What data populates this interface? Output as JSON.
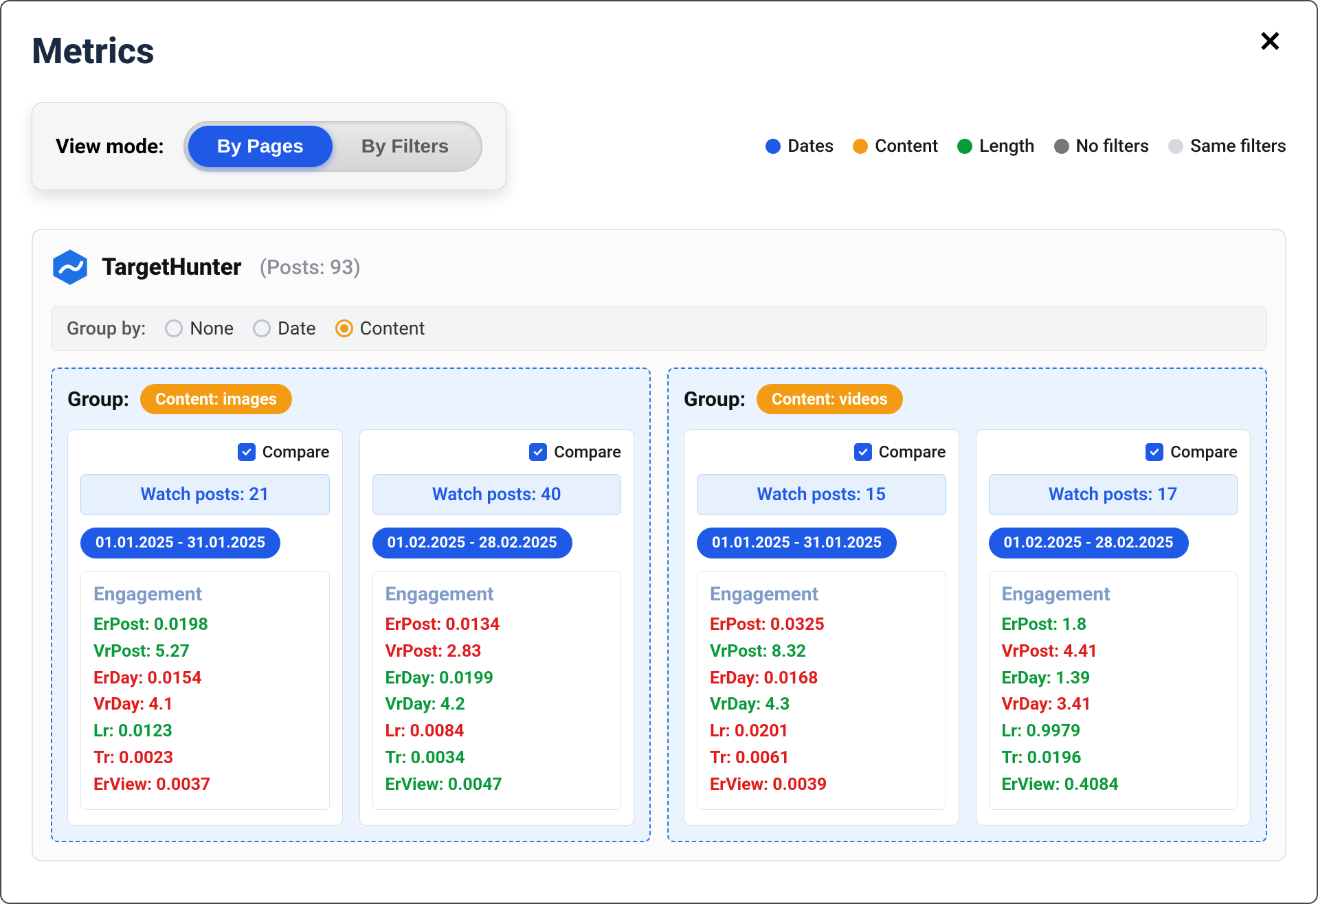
{
  "title": "Metrics",
  "view_mode": {
    "label": "View mode:",
    "options": [
      "By Pages",
      "By Filters"
    ],
    "active_index": 0
  },
  "legend": [
    {
      "label": "Dates",
      "color": "#1e5ae6"
    },
    {
      "label": "Content",
      "color": "#f39b12"
    },
    {
      "label": "Length",
      "color": "#0a9a3a"
    },
    {
      "label": "No filters",
      "color": "#777777"
    },
    {
      "label": "Same filters",
      "color": "#d6dadf"
    }
  ],
  "page": {
    "name": "TargetHunter",
    "posts_label": "(Posts: 93)",
    "logo_color": "#1e72e6"
  },
  "group_by": {
    "label": "Group by:",
    "options": [
      "None",
      "Date",
      "Content"
    ],
    "selected_index": 2
  },
  "group_label": "Group:",
  "compare_label": "Compare",
  "watch_label_prefix": "Watch posts: ",
  "engagement_title": "Engagement",
  "metric_color_pos": "#0a9a3a",
  "metric_color_neg": "#e11b1b",
  "groups": [
    {
      "pill": "Content: images",
      "cards": [
        {
          "watch_count": 21,
          "date_range": "01.01.2025 - 31.01.2025",
          "metrics": [
            {
              "text": "ErPost: 0.0198",
              "pos": true
            },
            {
              "text": "VrPost: 5.27",
              "pos": true
            },
            {
              "text": "ErDay: 0.0154",
              "pos": false
            },
            {
              "text": "VrDay: 4.1",
              "pos": false
            },
            {
              "text": "Lr: 0.0123",
              "pos": true
            },
            {
              "text": "Tr: 0.0023",
              "pos": false
            },
            {
              "text": "ErView: 0.0037",
              "pos": false
            }
          ]
        },
        {
          "watch_count": 40,
          "date_range": "01.02.2025 - 28.02.2025",
          "metrics": [
            {
              "text": "ErPost: 0.0134",
              "pos": false
            },
            {
              "text": "VrPost: 2.83",
              "pos": false
            },
            {
              "text": "ErDay: 0.0199",
              "pos": true
            },
            {
              "text": "VrDay: 4.2",
              "pos": true
            },
            {
              "text": "Lr: 0.0084",
              "pos": false
            },
            {
              "text": "Tr: 0.0034",
              "pos": true
            },
            {
              "text": "ErView: 0.0047",
              "pos": true
            }
          ]
        }
      ]
    },
    {
      "pill": "Content: videos",
      "cards": [
        {
          "watch_count": 15,
          "date_range": "01.01.2025 - 31.01.2025",
          "metrics": [
            {
              "text": "ErPost: 0.0325",
              "pos": false
            },
            {
              "text": "VrPost: 8.32",
              "pos": true
            },
            {
              "text": "ErDay: 0.0168",
              "pos": false
            },
            {
              "text": "VrDay: 4.3",
              "pos": true
            },
            {
              "text": "Lr: 0.0201",
              "pos": false
            },
            {
              "text": "Tr: 0.0061",
              "pos": false
            },
            {
              "text": "ErView: 0.0039",
              "pos": false
            }
          ]
        },
        {
          "watch_count": 17,
          "date_range": "01.02.2025 - 28.02.2025",
          "metrics": [
            {
              "text": "ErPost: 1.8",
              "pos": true
            },
            {
              "text": "VrPost: 4.41",
              "pos": false
            },
            {
              "text": "ErDay: 1.39",
              "pos": true
            },
            {
              "text": "VrDay: 3.41",
              "pos": false
            },
            {
              "text": "Lr: 0.9979",
              "pos": true
            },
            {
              "text": "Tr: 0.0196",
              "pos": true
            },
            {
              "text": "ErView: 0.4084",
              "pos": true
            }
          ]
        }
      ]
    }
  ]
}
